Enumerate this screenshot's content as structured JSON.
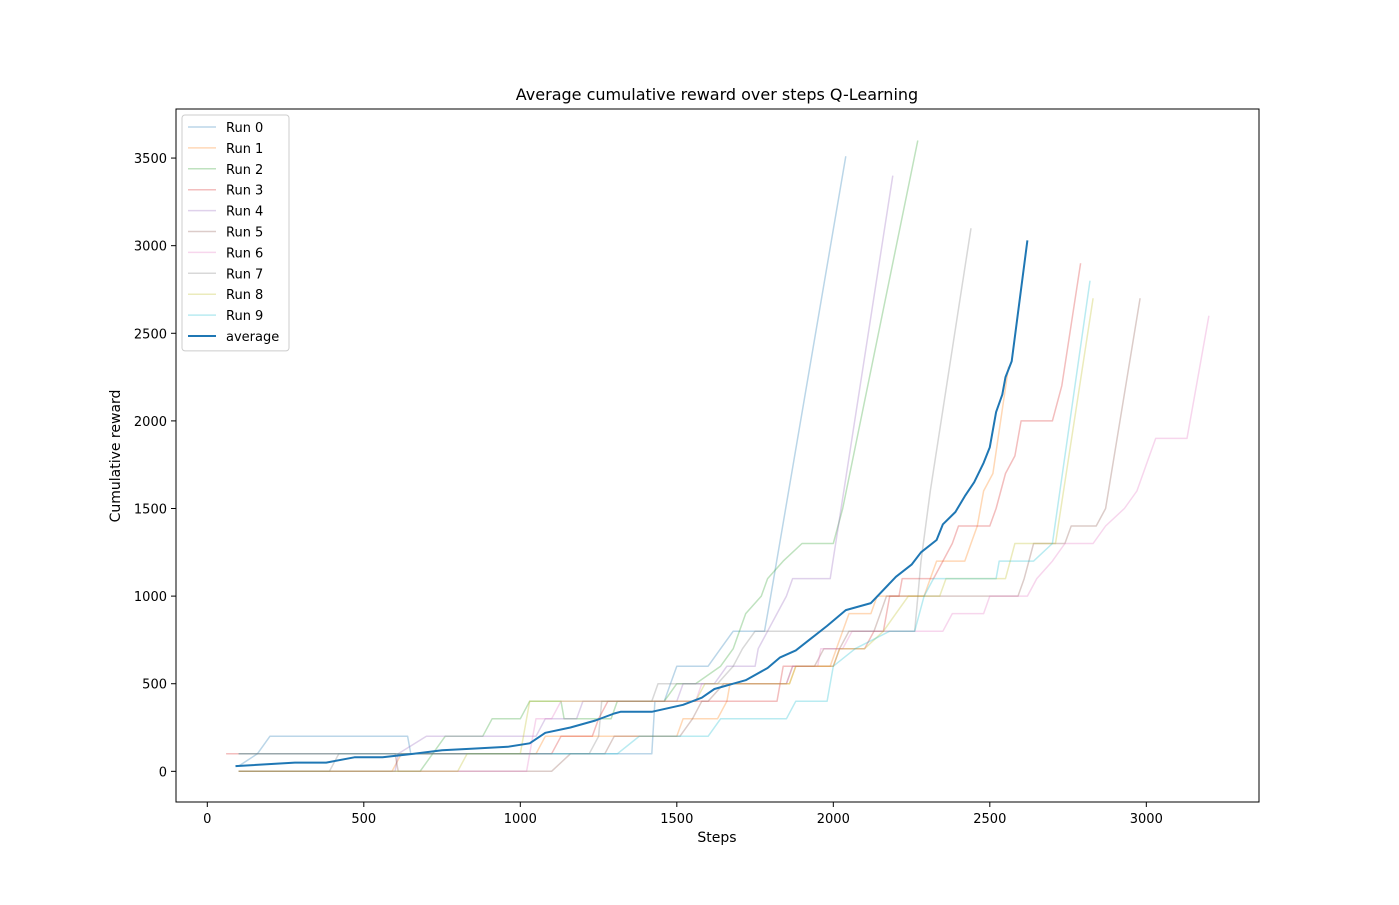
{
  "chart_data": {
    "type": "line",
    "title": "Average cumulative reward over steps Q-Learning",
    "xlabel": "Steps",
    "ylabel": "Cumulative reward",
    "xlim": [
      -100,
      3360
    ],
    "ylim": [
      -175,
      3780
    ],
    "xticks": [
      0,
      500,
      1000,
      1500,
      2000,
      2500,
      3000
    ],
    "yticks": [
      0,
      500,
      1000,
      1500,
      2000,
      2500,
      3000,
      3500
    ],
    "grid": false,
    "legend_position": "top-left",
    "series": [
      {
        "name": "Run 0",
        "color": "#1f77b4",
        "alpha": 0.3,
        "width": 1.5,
        "points": [
          [
            100,
            30
          ],
          [
            160,
            100
          ],
          [
            200,
            200
          ],
          [
            640,
            200
          ],
          [
            650,
            100
          ],
          [
            1420,
            100
          ],
          [
            1430,
            400
          ],
          [
            1460,
            400
          ],
          [
            1480,
            500
          ],
          [
            1500,
            600
          ],
          [
            1600,
            600
          ],
          [
            1640,
            700
          ],
          [
            1680,
            800
          ],
          [
            1780,
            800
          ],
          [
            1800,
            1000
          ],
          [
            2040,
            3510
          ]
        ]
      },
      {
        "name": "Run 1",
        "color": "#ff7f0e",
        "alpha": 0.3,
        "width": 1.5,
        "points": [
          [
            100,
            0
          ],
          [
            590,
            0
          ],
          [
            620,
            100
          ],
          [
            1050,
            100
          ],
          [
            1080,
            200
          ],
          [
            1500,
            200
          ],
          [
            1520,
            300
          ],
          [
            1630,
            300
          ],
          [
            1660,
            400
          ],
          [
            1670,
            500
          ],
          [
            1860,
            500
          ],
          [
            1880,
            600
          ],
          [
            1990,
            600
          ],
          [
            2010,
            700
          ],
          [
            2050,
            900
          ],
          [
            2120,
            900
          ],
          [
            2140,
            1000
          ],
          [
            2290,
            1000
          ],
          [
            2310,
            1100
          ],
          [
            2330,
            1200
          ],
          [
            2420,
            1200
          ],
          [
            2440,
            1300
          ],
          [
            2460,
            1400
          ],
          [
            2480,
            1600
          ],
          [
            2510,
            1700
          ],
          [
            2560,
            2310
          ]
        ]
      },
      {
        "name": "Run 2",
        "color": "#2ca02c",
        "alpha": 0.3,
        "width": 1.5,
        "points": [
          [
            100,
            0
          ],
          [
            680,
            0
          ],
          [
            760,
            200
          ],
          [
            880,
            200
          ],
          [
            910,
            300
          ],
          [
            1000,
            300
          ],
          [
            1030,
            400
          ],
          [
            1130,
            400
          ],
          [
            1140,
            300
          ],
          [
            1290,
            300
          ],
          [
            1310,
            400
          ],
          [
            1460,
            400
          ],
          [
            1500,
            500
          ],
          [
            1560,
            500
          ],
          [
            1640,
            600
          ],
          [
            1680,
            700
          ],
          [
            1700,
            800
          ],
          [
            1720,
            900
          ],
          [
            1770,
            1000
          ],
          [
            1790,
            1100
          ],
          [
            1840,
            1200
          ],
          [
            1900,
            1300
          ],
          [
            2000,
            1300
          ],
          [
            2030,
            1500
          ],
          [
            2270,
            3600
          ]
        ]
      },
      {
        "name": "Run 3",
        "color": "#d62728",
        "alpha": 0.3,
        "width": 1.5,
        "points": [
          [
            60,
            100
          ],
          [
            1100,
            100
          ],
          [
            1130,
            200
          ],
          [
            1230,
            200
          ],
          [
            1250,
            300
          ],
          [
            1280,
            400
          ],
          [
            1820,
            400
          ],
          [
            1840,
            600
          ],
          [
            2000,
            600
          ],
          [
            2020,
            700
          ],
          [
            2100,
            700
          ],
          [
            2130,
            800
          ],
          [
            2160,
            800
          ],
          [
            2180,
            1000
          ],
          [
            2210,
            1000
          ],
          [
            2220,
            1100
          ],
          [
            2320,
            1100
          ],
          [
            2350,
            1200
          ],
          [
            2380,
            1300
          ],
          [
            2400,
            1400
          ],
          [
            2500,
            1400
          ],
          [
            2520,
            1500
          ],
          [
            2550,
            1700
          ],
          [
            2580,
            1800
          ],
          [
            2600,
            2000
          ],
          [
            2700,
            2000
          ],
          [
            2730,
            2200
          ],
          [
            2790,
            2900
          ]
        ]
      },
      {
        "name": "Run 4",
        "color": "#9467bd",
        "alpha": 0.3,
        "width": 1.5,
        "points": [
          [
            100,
            0
          ],
          [
            600,
            0
          ],
          [
            610,
            100
          ],
          [
            700,
            200
          ],
          [
            1050,
            200
          ],
          [
            1080,
            300
          ],
          [
            1180,
            300
          ],
          [
            1200,
            400
          ],
          [
            1500,
            400
          ],
          [
            1520,
            500
          ],
          [
            1620,
            500
          ],
          [
            1660,
            600
          ],
          [
            1750,
            600
          ],
          [
            1760,
            700
          ],
          [
            1790,
            800
          ],
          [
            1820,
            900
          ],
          [
            1850,
            1000
          ],
          [
            1870,
            1100
          ],
          [
            1990,
            1100
          ],
          [
            2190,
            3400
          ]
        ]
      },
      {
        "name": "Run 5",
        "color": "#8c564b",
        "alpha": 0.3,
        "width": 1.5,
        "points": [
          [
            100,
            100
          ],
          [
            600,
            100
          ],
          [
            610,
            0
          ],
          [
            1100,
            0
          ],
          [
            1160,
            100
          ],
          [
            1270,
            100
          ],
          [
            1300,
            200
          ],
          [
            1510,
            200
          ],
          [
            1550,
            300
          ],
          [
            1580,
            400
          ],
          [
            1600,
            400
          ],
          [
            1650,
            500
          ],
          [
            1850,
            500
          ],
          [
            1870,
            600
          ],
          [
            1940,
            600
          ],
          [
            1970,
            700
          ],
          [
            2020,
            700
          ],
          [
            2050,
            800
          ],
          [
            2130,
            800
          ],
          [
            2150,
            900
          ],
          [
            2170,
            1000
          ],
          [
            2590,
            1000
          ],
          [
            2610,
            1100
          ],
          [
            2640,
            1300
          ],
          [
            2740,
            1300
          ],
          [
            2760,
            1400
          ],
          [
            2840,
            1400
          ],
          [
            2870,
            1500
          ],
          [
            2980,
            2700
          ]
        ]
      },
      {
        "name": "Run 6",
        "color": "#e377c2",
        "alpha": 0.3,
        "width": 1.5,
        "points": [
          [
            100,
            0
          ],
          [
            1020,
            0
          ],
          [
            1040,
            200
          ],
          [
            1050,
            300
          ],
          [
            1100,
            300
          ],
          [
            1130,
            400
          ],
          [
            1560,
            400
          ],
          [
            1580,
            500
          ],
          [
            1850,
            500
          ],
          [
            1870,
            600
          ],
          [
            1950,
            600
          ],
          [
            1960,
            700
          ],
          [
            2030,
            700
          ],
          [
            2060,
            800
          ],
          [
            2350,
            800
          ],
          [
            2380,
            900
          ],
          [
            2480,
            900
          ],
          [
            2500,
            1000
          ],
          [
            2620,
            1000
          ],
          [
            2650,
            1100
          ],
          [
            2700,
            1200
          ],
          [
            2740,
            1300
          ],
          [
            2830,
            1300
          ],
          [
            2870,
            1400
          ],
          [
            2930,
            1500
          ],
          [
            2970,
            1600
          ],
          [
            3010,
            1800
          ],
          [
            3030,
            1900
          ],
          [
            3130,
            1900
          ],
          [
            3200,
            2600
          ]
        ]
      },
      {
        "name": "Run 7",
        "color": "#7f7f7f",
        "alpha": 0.3,
        "width": 1.5,
        "points": [
          [
            100,
            0
          ],
          [
            390,
            0
          ],
          [
            420,
            100
          ],
          [
            1220,
            100
          ],
          [
            1250,
            200
          ],
          [
            1260,
            400
          ],
          [
            1420,
            400
          ],
          [
            1440,
            500
          ],
          [
            1630,
            500
          ],
          [
            1680,
            600
          ],
          [
            1710,
            700
          ],
          [
            1750,
            800
          ],
          [
            2260,
            800
          ],
          [
            2280,
            1200
          ],
          [
            2310,
            1600
          ],
          [
            2440,
            3100
          ]
        ]
      },
      {
        "name": "Run 8",
        "color": "#bcbd22",
        "alpha": 0.3,
        "width": 1.5,
        "points": [
          [
            100,
            0
          ],
          [
            800,
            0
          ],
          [
            830,
            100
          ],
          [
            1000,
            100
          ],
          [
            1030,
            400
          ],
          [
            1560,
            400
          ],
          [
            1590,
            500
          ],
          [
            1860,
            500
          ],
          [
            1880,
            600
          ],
          [
            2000,
            600
          ],
          [
            2020,
            700
          ],
          [
            2100,
            700
          ],
          [
            2160,
            800
          ],
          [
            2200,
            900
          ],
          [
            2240,
            1000
          ],
          [
            2340,
            1000
          ],
          [
            2360,
            1100
          ],
          [
            2550,
            1100
          ],
          [
            2580,
            1300
          ],
          [
            2710,
            1300
          ],
          [
            2830,
            2700
          ]
        ]
      },
      {
        "name": "Run 9",
        "color": "#17becf",
        "alpha": 0.3,
        "width": 1.5,
        "points": [
          [
            100,
            100
          ],
          [
            1310,
            100
          ],
          [
            1380,
            200
          ],
          [
            1600,
            200
          ],
          [
            1640,
            300
          ],
          [
            1850,
            300
          ],
          [
            1880,
            400
          ],
          [
            1980,
            400
          ],
          [
            2000,
            600
          ],
          [
            2070,
            700
          ],
          [
            2180,
            800
          ],
          [
            2260,
            800
          ],
          [
            2290,
            1000
          ],
          [
            2320,
            1100
          ],
          [
            2520,
            1100
          ],
          [
            2530,
            1200
          ],
          [
            2640,
            1200
          ],
          [
            2700,
            1300
          ],
          [
            2820,
            2800
          ]
        ]
      },
      {
        "name": "average",
        "color": "#1f77b4",
        "alpha": 1.0,
        "width": 2,
        "points": [
          [
            90,
            30
          ],
          [
            280,
            50
          ],
          [
            380,
            50
          ],
          [
            470,
            80
          ],
          [
            560,
            80
          ],
          [
            660,
            100
          ],
          [
            750,
            120
          ],
          [
            850,
            130
          ],
          [
            960,
            140
          ],
          [
            1030,
            160
          ],
          [
            1080,
            220
          ],
          [
            1160,
            250
          ],
          [
            1240,
            290
          ],
          [
            1300,
            330
          ],
          [
            1320,
            340
          ],
          [
            1420,
            340
          ],
          [
            1520,
            380
          ],
          [
            1580,
            420
          ],
          [
            1620,
            470
          ],
          [
            1680,
            500
          ],
          [
            1720,
            520
          ],
          [
            1790,
            590
          ],
          [
            1830,
            650
          ],
          [
            1880,
            690
          ],
          [
            1930,
            760
          ],
          [
            1980,
            830
          ],
          [
            2040,
            920
          ],
          [
            2120,
            960
          ],
          [
            2200,
            1110
          ],
          [
            2250,
            1180
          ],
          [
            2280,
            1250
          ],
          [
            2330,
            1320
          ],
          [
            2350,
            1410
          ],
          [
            2390,
            1480
          ],
          [
            2420,
            1570
          ],
          [
            2450,
            1650
          ],
          [
            2480,
            1760
          ],
          [
            2500,
            1850
          ],
          [
            2520,
            2050
          ],
          [
            2540,
            2150
          ],
          [
            2550,
            2250
          ],
          [
            2570,
            2340
          ],
          [
            2620,
            3030
          ]
        ]
      }
    ]
  }
}
